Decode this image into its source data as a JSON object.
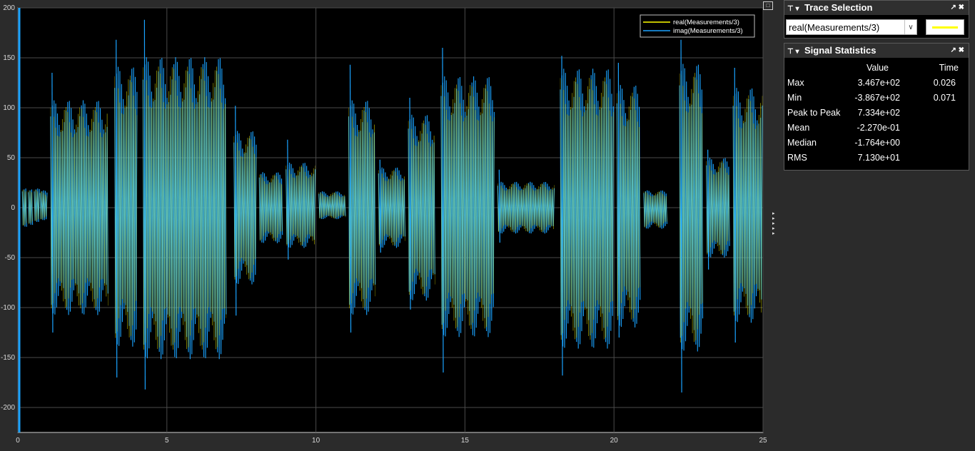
{
  "chart_data": {
    "type": "line",
    "xlim": [
      0,
      25
    ],
    "ylim": [
      -225,
      200
    ],
    "x_ticks": [
      "0",
      "5",
      "10",
      "15",
      "20",
      "25"
    ],
    "y_ticks": [
      "200",
      "150",
      "100",
      "50",
      "0",
      "-50",
      "-100",
      "-150",
      "-200"
    ],
    "grid": true,
    "legend_position": "top-right",
    "series": [
      {
        "name": "real(Measurements/3)",
        "color": "#ffff00"
      },
      {
        "name": "imag(Measurements/3)",
        "color": "#1aa3ff"
      }
    ],
    "envelope": [
      {
        "x": [
          0.15,
          0.3
        ],
        "hi": 20,
        "lo": -20
      },
      {
        "x": [
          0.35,
          0.5
        ],
        "hi": 19,
        "lo": -18
      },
      {
        "x": [
          0.55,
          0.75
        ],
        "hi": 20,
        "lo": -15
      },
      {
        "x": [
          0.75,
          1.0
        ],
        "hi": 18,
        "lo": -13
      },
      {
        "x": [
          1.1,
          3.05
        ],
        "hi": 112,
        "lo": -112,
        "spike_hi": 135,
        "spike_lo": -125
      },
      {
        "x": [
          3.25,
          4.0
        ],
        "hi": 147,
        "lo": -145,
        "spike_hi": 168,
        "spike_lo": -170
      },
      {
        "x": [
          4.2,
          7.0
        ],
        "hi": 157,
        "lo": -158,
        "spike_hi": 188,
        "spike_lo": -182
      },
      {
        "x": [
          7.25,
          8.0
        ],
        "hi": 80,
        "lo": -80,
        "spike_hi": 102,
        "spike_lo": -108
      },
      {
        "x": [
          8.1,
          8.9
        ],
        "hi": 37,
        "lo": -37
      },
      {
        "x": [
          9.0,
          10.0
        ],
        "hi": 47,
        "lo": -42,
        "spike_hi": 68,
        "spike_lo": -52
      },
      {
        "x": [
          10.1,
          11.0
        ],
        "hi": 17,
        "lo": -12
      },
      {
        "x": [
          11.1,
          12.0
        ],
        "hi": 112,
        "lo": -112,
        "spike_hi": 143,
        "spike_lo": -125
      },
      {
        "x": [
          12.1,
          13.0
        ],
        "hi": 42,
        "lo": -42,
        "spike_hi": 48,
        "spike_lo": -45
      },
      {
        "x": [
          13.1,
          14.0
        ],
        "hi": 97,
        "lo": -97,
        "spike_hi": 110,
        "spike_lo": -102
      },
      {
        "x": [
          14.2,
          16.0
        ],
        "hi": 137,
        "lo": -135,
        "spike_hi": 160,
        "spike_lo": -165
      },
      {
        "x": [
          16.1,
          18.0
        ],
        "hi": 27,
        "lo": -27,
        "spike_hi": 38,
        "spike_lo": -35
      },
      {
        "x": [
          18.2,
          20.0
        ],
        "hi": 145,
        "lo": -147,
        "spike_hi": 152,
        "spike_lo": -168
      },
      {
        "x": [
          20.1,
          20.9
        ],
        "hi": 128,
        "lo": -125,
        "spike_hi": 145,
        "spike_lo": -130
      },
      {
        "x": [
          21.0,
          21.8
        ],
        "hi": 18,
        "lo": -22
      },
      {
        "x": [
          22.2,
          23.0
        ],
        "hi": 150,
        "lo": -150,
        "spike_hi": 168,
        "spike_lo": -185
      },
      {
        "x": [
          23.1,
          23.9
        ],
        "hi": 52,
        "lo": -52,
        "spike_hi": 58,
        "spike_lo": -62
      },
      {
        "x": [
          24.0,
          25.0
        ],
        "hi": 125,
        "lo": -120,
        "spike_hi": 140,
        "spike_lo": -135
      }
    ]
  },
  "trace_selection": {
    "title": "Trace Selection",
    "selected": "real(Measurements/3)",
    "swatch_color": "#ffff00"
  },
  "signal_statistics": {
    "title": "Signal Statistics",
    "columns": [
      "Value",
      "Time"
    ],
    "rows": [
      {
        "name": "Max",
        "value": "3.467e+02",
        "time": "0.026"
      },
      {
        "name": "Min",
        "value": "-3.867e+02",
        "time": "0.071"
      },
      {
        "name": "Peak to Peak",
        "value": "7.334e+02",
        "time": ""
      },
      {
        "name": "Mean",
        "value": "-2.270e-01",
        "time": ""
      },
      {
        "name": "Median",
        "value": "-1.764e+00",
        "time": ""
      },
      {
        "name": "RMS",
        "value": "7.130e+01",
        "time": ""
      }
    ]
  }
}
